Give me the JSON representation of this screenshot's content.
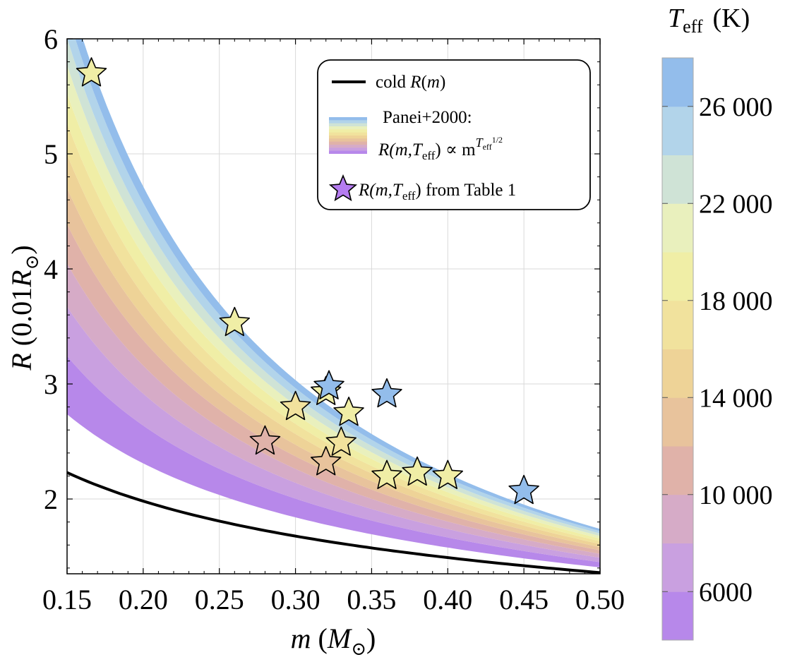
{
  "chart_data": {
    "type": "scatter",
    "title": "",
    "xlabel": "m (M⊙)",
    "xlabel_parts": {
      "var": "m",
      "open": " (",
      "unit": "M",
      "sub": "⊙",
      "close": ")"
    },
    "ylabel": "R (0.01R⊙)",
    "ylabel_parts": {
      "var": "R",
      "open": " (0.01",
      "unit": "R",
      "sub": "⊙",
      "close": ")"
    },
    "xlim": [
      0.15,
      0.5
    ],
    "ylim": [
      1.35,
      6.0
    ],
    "xticks": [
      "0.15",
      "0.20",
      "0.25",
      "0.30",
      "0.35",
      "0.40",
      "0.45",
      "0.50"
    ],
    "xtick_values": [
      0.15,
      0.2,
      0.25,
      0.3,
      0.35,
      0.4,
      0.45,
      0.5
    ],
    "yticks": [
      "2",
      "3",
      "4",
      "5",
      "6"
    ],
    "ytick_values": [
      2,
      3,
      4,
      5,
      6
    ],
    "grid": true,
    "cold_curve": {
      "label": "cold R(m)",
      "x": [
        0.15,
        0.2,
        0.25,
        0.3,
        0.35,
        0.4,
        0.45,
        0.5
      ],
      "y": [
        2.23,
        2.01,
        1.85,
        1.73,
        1.62,
        1.52,
        1.44,
        1.36
      ]
    },
    "panei_bands": {
      "label": "Panei+2000:",
      "formula": "R(m,Teff) ∝ m^(Teff^1/2)",
      "teff_max_curve": {
        "x": [
          0.15,
          0.2,
          0.25,
          0.3,
          0.35,
          0.4,
          0.45,
          0.5
        ],
        "y": [
          6.45,
          5.15,
          4.12,
          3.35,
          2.77,
          2.34,
          2.0,
          1.74
        ]
      },
      "teff_levels_K": [
        4000,
        6000,
        8000,
        10000,
        12000,
        14000,
        16000,
        18000,
        20000,
        22000,
        24000,
        26000,
        28000
      ]
    },
    "stars": {
      "label": "R(m,Teff) from Table 1",
      "points": [
        {
          "m": 0.166,
          "R": 5.7,
          "teff": 19000
        },
        {
          "m": 0.26,
          "R": 3.53,
          "teff": 18500
        },
        {
          "m": 0.28,
          "R": 2.5,
          "teff": 11500
        },
        {
          "m": 0.3,
          "R": 2.8,
          "teff": 16500
        },
        {
          "m": 0.32,
          "R": 2.93,
          "teff": 19500
        },
        {
          "m": 0.322,
          "R": 2.98,
          "teff": 26500
        },
        {
          "m": 0.335,
          "R": 2.75,
          "teff": 19500
        },
        {
          "m": 0.33,
          "R": 2.49,
          "teff": 17000
        },
        {
          "m": 0.32,
          "R": 2.32,
          "teff": 13500
        },
        {
          "m": 0.36,
          "R": 2.91,
          "teff": 27000
        },
        {
          "m": 0.36,
          "R": 2.2,
          "teff": 18500
        },
        {
          "m": 0.38,
          "R": 2.23,
          "teff": 19500
        },
        {
          "m": 0.4,
          "R": 2.2,
          "teff": 20000
        },
        {
          "m": 0.45,
          "R": 2.07,
          "teff": 27500
        }
      ]
    },
    "colorbar": {
      "title_var": "T",
      "title_sub": "eff",
      "title_unit": "(K)",
      "range": [
        4000,
        28000
      ],
      "ticks": [
        "6000",
        "10 000",
        "14 000",
        "18 000",
        "22 000",
        "26 000"
      ],
      "tick_values": [
        6000,
        10000,
        14000,
        18000,
        22000,
        26000
      ],
      "bins": [
        {
          "lo": 4000,
          "hi": 6000,
          "color": "#b788ea"
        },
        {
          "lo": 6000,
          "hi": 8000,
          "color": "#c9a0e0"
        },
        {
          "lo": 8000,
          "hi": 10000,
          "color": "#d6abc7"
        },
        {
          "lo": 10000,
          "hi": 12000,
          "color": "#e0b2a9"
        },
        {
          "lo": 12000,
          "hi": 14000,
          "color": "#e8c39c"
        },
        {
          "lo": 14000,
          "hi": 16000,
          "color": "#eed397"
        },
        {
          "lo": 16000,
          "hi": 18000,
          "color": "#f1e29d"
        },
        {
          "lo": 18000,
          "hi": 20000,
          "color": "#f0eea6"
        },
        {
          "lo": 20000,
          "hi": 22000,
          "color": "#e9f0bd"
        },
        {
          "lo": 22000,
          "hi": 24000,
          "color": "#cfe3d6"
        },
        {
          "lo": 24000,
          "hi": 26000,
          "color": "#b2d4ea"
        },
        {
          "lo": 26000,
          "hi": 28000,
          "color": "#93bdeb"
        }
      ]
    }
  },
  "legend": {
    "cold_label_prefix": "cold ",
    "cold_label_R": "R",
    "cold_label_paren_open": "(",
    "cold_label_m": "m",
    "cold_label_paren_close": ")",
    "panei_title": "Panei+2000:",
    "panei_formula_R": "R",
    "panei_formula_args": "(m,T",
    "panei_formula_sub": "eff",
    "panei_formula_mid": ") ∝ m",
    "panei_formula_exp": "T",
    "panei_formula_exp_sub": "eff",
    "panei_formula_exp_pow": "1/2",
    "stars_label_R": "R",
    "stars_label_args": "(m,T",
    "stars_label_sub": "eff",
    "stars_label_rest": ") from Table 1"
  }
}
